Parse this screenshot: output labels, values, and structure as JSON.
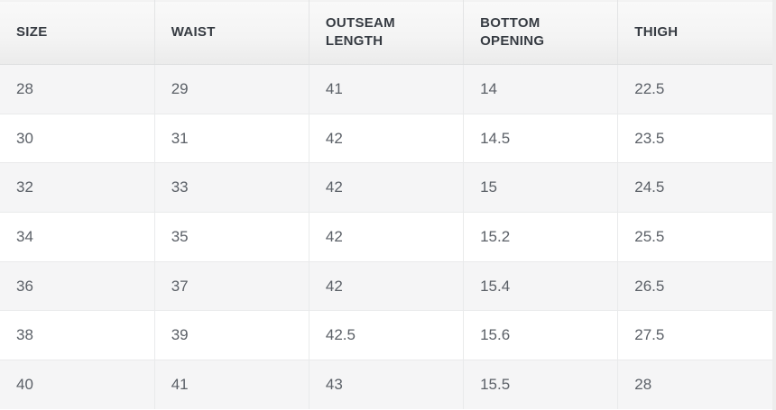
{
  "table": {
    "headers": [
      "SIZE",
      "WAIST",
      "OUTSEAM LENGTH",
      "BOTTOM OPENING",
      "THIGH"
    ],
    "rows": [
      [
        "28",
        "29",
        "41",
        "14",
        "22.5"
      ],
      [
        "30",
        "31",
        "42",
        "14.5",
        "23.5"
      ],
      [
        "32",
        "33",
        "42",
        "15",
        "24.5"
      ],
      [
        "34",
        "35",
        "42",
        "15.2",
        "25.5"
      ],
      [
        "36",
        "37",
        "42",
        "15.4",
        "26.5"
      ],
      [
        "38",
        "39",
        "42.5",
        "15.6",
        "27.5"
      ],
      [
        "40",
        "41",
        "43",
        "15.5",
        "28"
      ]
    ]
  },
  "colors": {
    "header_text": "#363b42",
    "cell_text": "#5b6067",
    "stripe_row_bg": "#f5f5f6",
    "white_row_bg": "#ffffff",
    "header_bg_top": "#f9f9f9",
    "header_bg_bottom": "#ebebeb",
    "border": "#e9eaeb"
  }
}
